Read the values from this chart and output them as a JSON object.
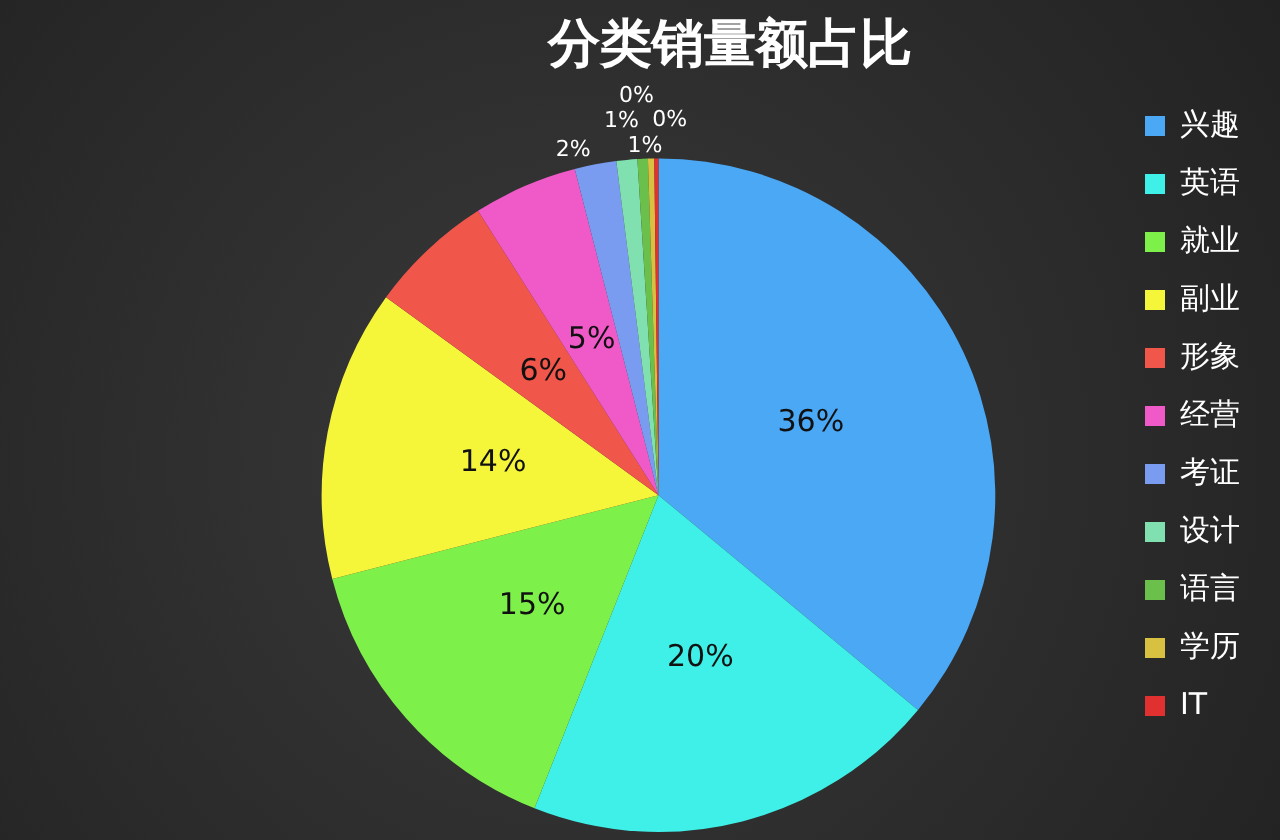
{
  "chart_data": {
    "type": "pie",
    "title": "分类销量额占比",
    "categories": [
      "兴趣",
      "英语",
      "就业",
      "副业",
      "形象",
      "经营",
      "考证",
      "设计",
      "语言",
      "学历",
      "IT"
    ],
    "values": [
      36,
      20,
      15,
      14,
      6,
      5,
      2,
      1,
      0.5,
      0.3,
      0.2
    ],
    "value_labels": [
      "36%",
      "20%",
      "15%",
      "14%",
      "6%",
      "5%",
      "2%",
      "1%",
      "1%",
      "0%",
      "0%"
    ],
    "colors": [
      "#4aa8f5",
      "#3ef0e8",
      "#7ef04a",
      "#f5f53a",
      "#f0564a",
      "#f05ac8",
      "#7a9cf0",
      "#80e0b0",
      "#6ac04a",
      "#d8c040",
      "#e03030"
    ],
    "legend": "right"
  }
}
